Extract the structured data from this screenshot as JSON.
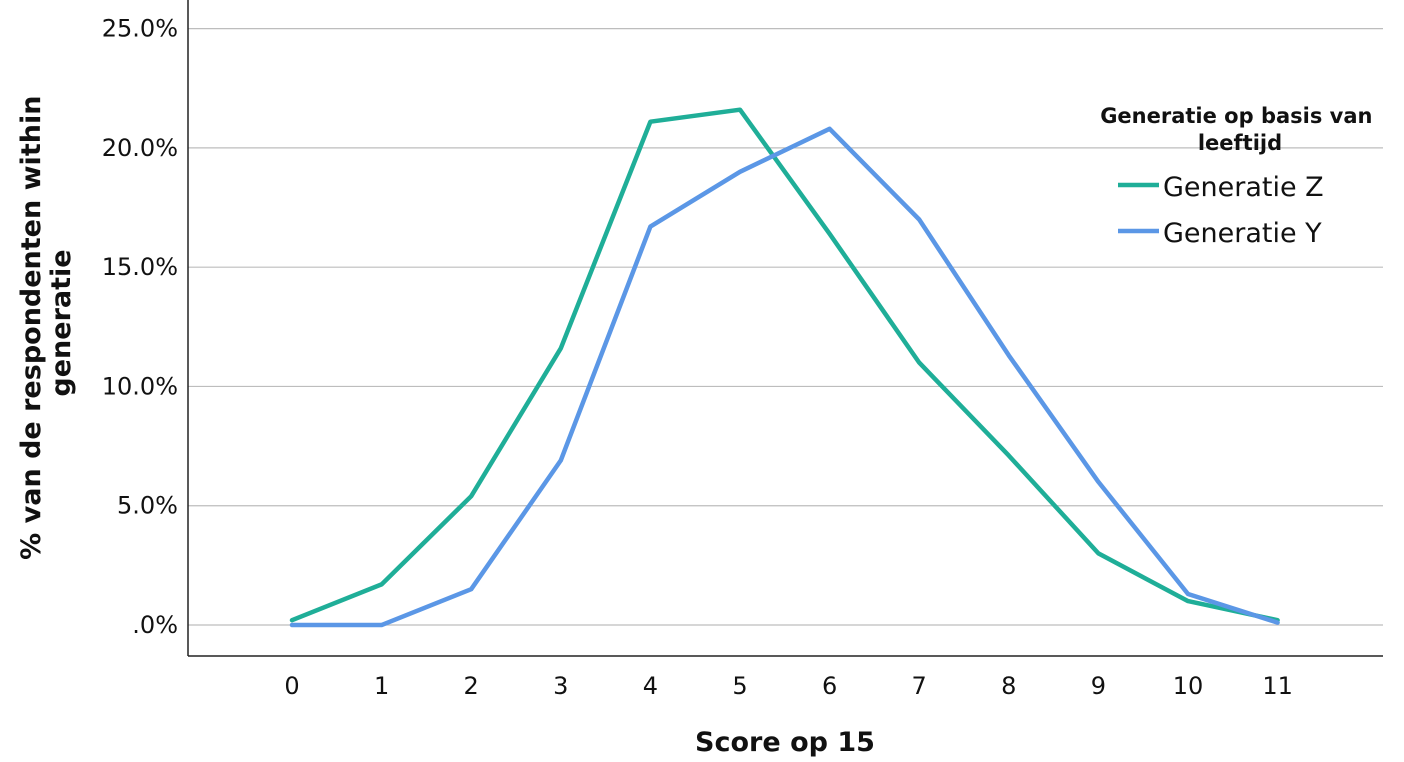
{
  "chart_data": {
    "type": "line",
    "title": "",
    "xlabel": "Score op 15",
    "ylabel": [
      "% van de respondenten within",
      "generatie"
    ],
    "x": [
      0,
      1,
      2,
      3,
      4,
      5,
      6,
      7,
      8,
      9,
      10,
      11
    ],
    "x_tick_labels": [
      "0",
      "1",
      "2",
      "3",
      "4",
      "5",
      "6",
      "7",
      "8",
      "9",
      "10",
      "11"
    ],
    "ylim": [
      -1.3,
      26.2
    ],
    "y_ticks": [
      0,
      5,
      10,
      15,
      20,
      25
    ],
    "y_tick_labels": [
      ".0%",
      "5.0%",
      "10.0%",
      "15.0%",
      "20.0%",
      "25.0%"
    ],
    "grid": "horizontal",
    "legend": {
      "title": [
        "Generatie op basis van",
        "leeftijd"
      ],
      "placement": "top-right"
    },
    "series": [
      {
        "name": "Generatie Z",
        "color": "#1fae98",
        "values": [
          0.2,
          1.7,
          5.4,
          11.6,
          21.1,
          21.6,
          16.4,
          11.0,
          7.1,
          3.0,
          1.0,
          0.2
        ]
      },
      {
        "name": "Generatie Y",
        "color": "#5b97e6",
        "values": [
          0.0,
          0.0,
          1.5,
          6.9,
          16.7,
          19.0,
          20.8,
          17.0,
          11.3,
          6.0,
          1.3,
          0.1
        ]
      }
    ]
  }
}
